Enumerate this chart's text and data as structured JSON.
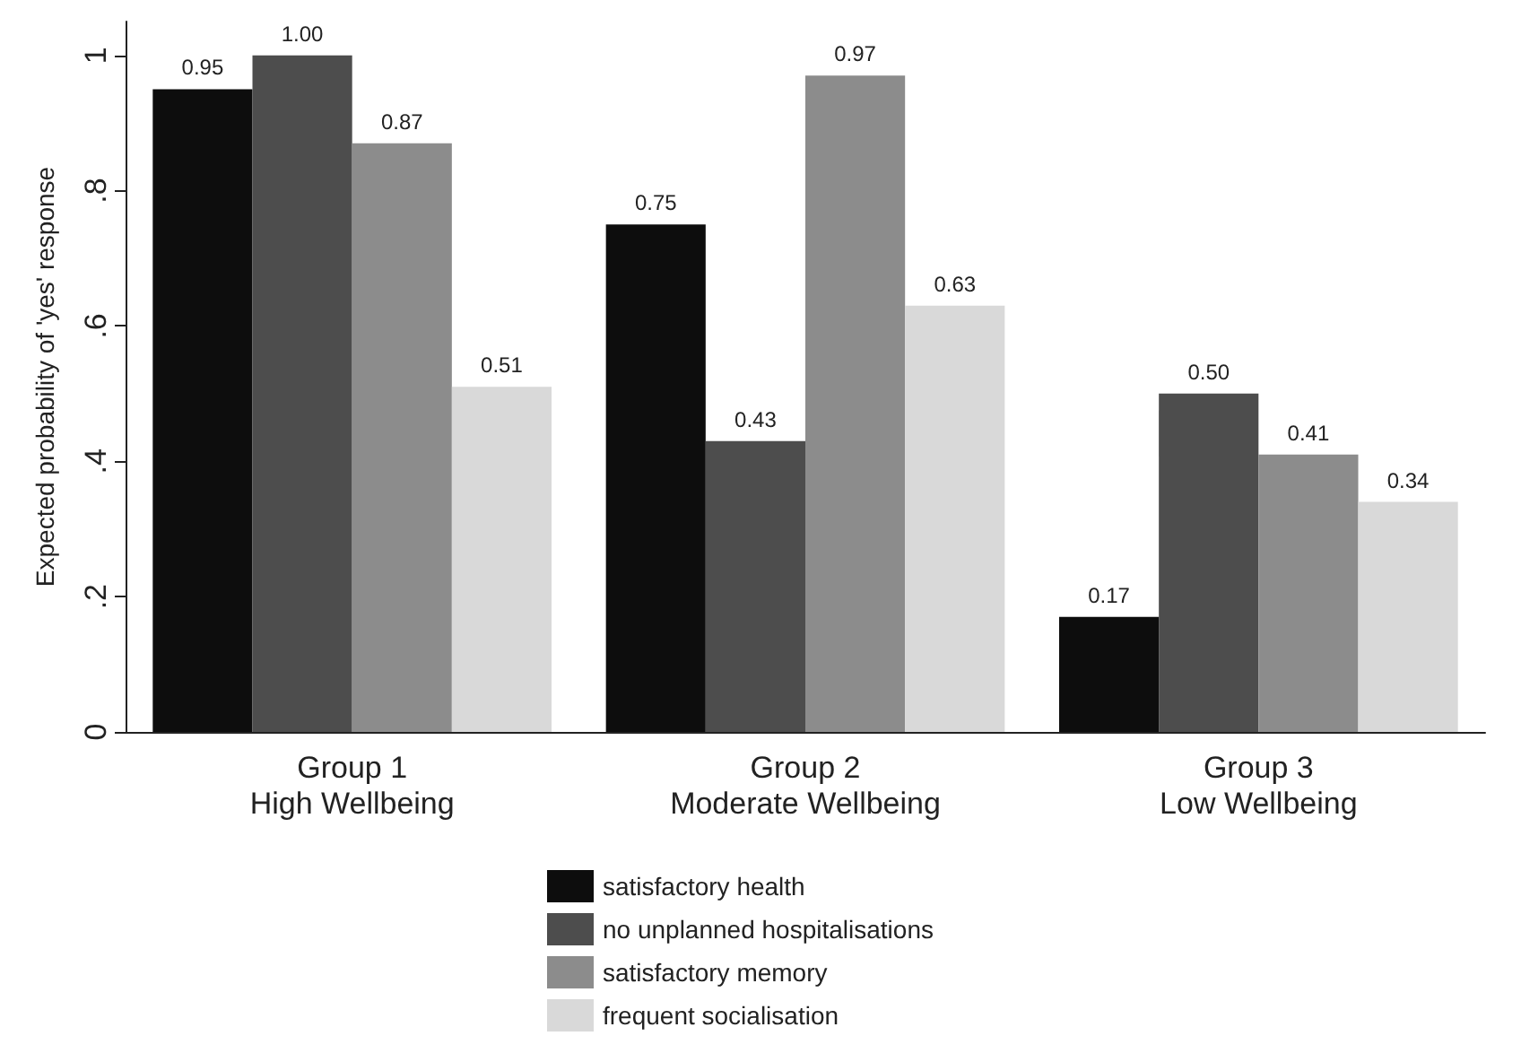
{
  "chart_data": {
    "type": "bar",
    "ylabel": "Expected probability of 'yes' response",
    "categories": [
      "Group 1\nHigh Wellbeing",
      "Group 2\nModerate Wellbeing",
      "Group 3\nLow Wellbeing"
    ],
    "series": [
      {
        "name": "satisfactory health",
        "color": "#0d0d0d",
        "values": [
          0.95,
          0.75,
          0.17
        ],
        "value_labels": [
          "0.95",
          "0.75",
          "0.17"
        ]
      },
      {
        "name": "no unplanned hospitalisations",
        "color": "#4d4d4d",
        "values": [
          1.0,
          0.43,
          0.5
        ],
        "value_labels": [
          "1.00",
          "0.43",
          "0.50"
        ]
      },
      {
        "name": "satisfactory memory",
        "color": "#8c8c8c",
        "values": [
          0.87,
          0.97,
          0.41
        ],
        "value_labels": [
          "0.87",
          "0.97",
          "0.41"
        ]
      },
      {
        "name": "frequent socialisation",
        "color": "#d9d9d9",
        "values": [
          0.51,
          0.63,
          0.34
        ],
        "value_labels": [
          "0.51",
          "0.63",
          "0.34"
        ]
      }
    ],
    "ylim": [
      0,
      1.05
    ],
    "yticks": [
      0,
      {
        "value": 0.2,
        "label": ".2"
      },
      {
        "value": 0.4,
        "label": ".4"
      },
      {
        "value": 0.6,
        "label": ".6"
      },
      {
        "value": 0.8,
        "label": ".8"
      },
      1
    ],
    "grid": false,
    "legend": "bottom"
  }
}
